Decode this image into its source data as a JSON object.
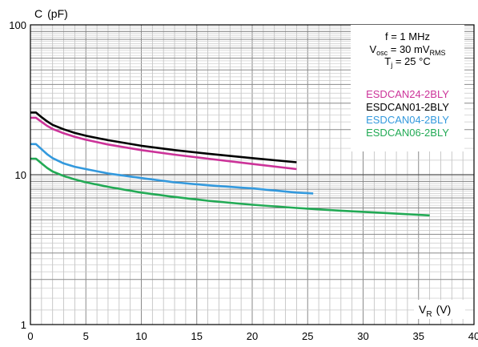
{
  "chart_data": {
    "type": "line",
    "yscale": "log",
    "xlim": [
      0,
      40
    ],
    "ylim": [
      1,
      100
    ],
    "grid": true,
    "legend_position": "top-right",
    "ylabel": {
      "main": "C",
      "unit": "(pF)"
    },
    "xlabel": {
      "main": "V",
      "sub": "R",
      "unit": "(V)"
    },
    "x_ticks": [
      "0",
      "5",
      "10",
      "15",
      "20",
      "25",
      "30",
      "35",
      "40"
    ],
    "y_ticks": [
      "1",
      "10",
      "100"
    ],
    "conditions": {
      "line1": "f = 1 MHz",
      "line2_main": "V",
      "line2_sub": "osc",
      "line2_rest": " = 30 mV",
      "line2_sub2": "RMS",
      "line3_main": "T",
      "line3_sub": "j",
      "line3_rest": " = 25 °C"
    },
    "series": [
      {
        "name": "ESDCAN24-2BLY",
        "color": "#cc3399",
        "x": [
          0,
          0.5,
          1,
          1.5,
          2,
          3,
          4,
          5,
          7,
          10,
          13,
          16,
          20,
          24
        ],
        "y": [
          24,
          24,
          22.5,
          21.2,
          20.2,
          18.9,
          17.9,
          17.1,
          15.9,
          14.6,
          13.6,
          12.8,
          11.8,
          10.9
        ]
      },
      {
        "name": "ESDCAN01-2BLY",
        "color": "#000000",
        "x": [
          0,
          0.5,
          1,
          1.5,
          2,
          3,
          4,
          5,
          7,
          10,
          13,
          16,
          20,
          24
        ],
        "y": [
          26,
          26,
          24.2,
          22.7,
          21.5,
          20.1,
          19.0,
          18.2,
          17.0,
          15.6,
          14.6,
          13.8,
          12.9,
          12.1
        ]
      },
      {
        "name": "ESDCAN04-2BLY",
        "color": "#3399dd",
        "x": [
          0,
          0.5,
          1,
          1.5,
          2,
          3,
          4,
          5,
          7,
          10,
          13,
          16,
          20,
          24,
          25.5
        ],
        "y": [
          16,
          16,
          14.8,
          13.7,
          12.9,
          11.9,
          11.3,
          10.9,
          10.2,
          9.5,
          8.9,
          8.5,
          8.1,
          7.6,
          7.5
        ]
      },
      {
        "name": "ESDCAN06-2BLY",
        "color": "#22aa55",
        "x": [
          0,
          0.5,
          1,
          1.5,
          2,
          3,
          4,
          5,
          7,
          10,
          13,
          16,
          20,
          24,
          28,
          32,
          36
        ],
        "y": [
          12.8,
          12.8,
          11.9,
          11.1,
          10.5,
          9.8,
          9.3,
          8.9,
          8.3,
          7.6,
          7.1,
          6.7,
          6.3,
          6.0,
          5.75,
          5.55,
          5.35
        ]
      }
    ]
  }
}
